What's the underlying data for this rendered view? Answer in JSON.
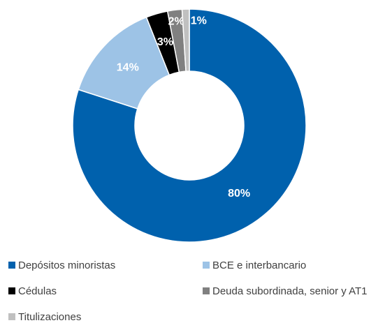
{
  "chart_data": {
    "type": "donut",
    "categories": [
      "Depósitos minoristas",
      "BCE e interbancario",
      "Cédulas",
      "Deuda subordinada, senior y AT1",
      "Titulizaciones"
    ],
    "values": [
      80,
      14,
      3,
      2,
      1
    ],
    "value_labels": [
      "80%",
      "14%",
      "3%",
      "2%",
      "1%"
    ],
    "colors": [
      "#0061ad",
      "#9dc3e6",
      "#000000",
      "#808080",
      "#c0c0c0"
    ],
    "legend": "bottom"
  }
}
